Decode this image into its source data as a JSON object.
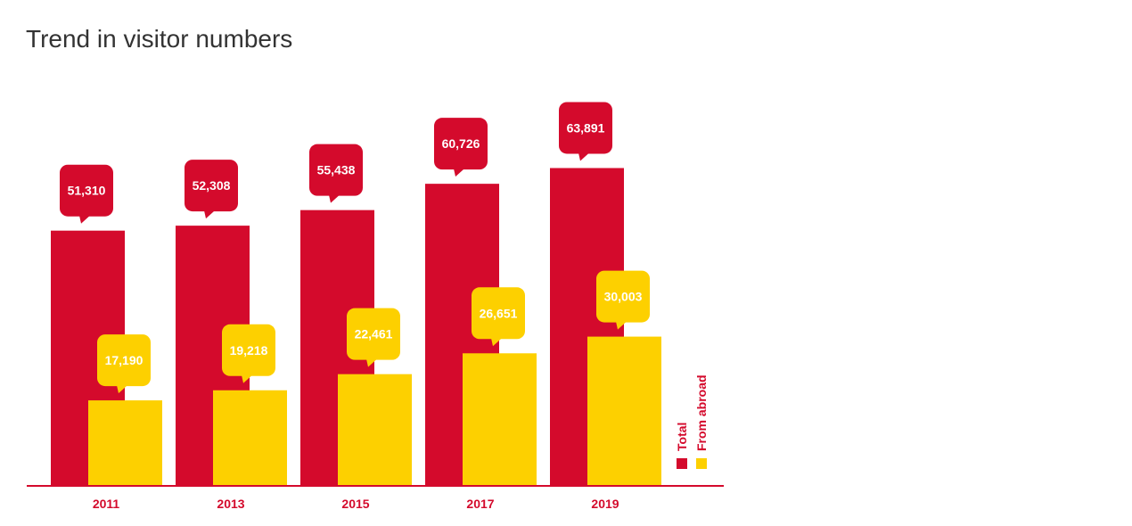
{
  "page": {
    "title": "Trend in visitor numbers"
  },
  "colors": {
    "total": "#d40a2c",
    "abroad": "#fdd000",
    "axis": "#d40a2c",
    "title": "#333333"
  },
  "chart_data": {
    "type": "bar",
    "title": "Trend in visitor numbers",
    "categories": [
      "2011",
      "2013",
      "2015",
      "2017",
      "2019"
    ],
    "series": [
      {
        "name": "Total",
        "values": [
          51310,
          52308,
          55438,
          60726,
          63891
        ],
        "labels": [
          "51,310",
          "52,308",
          "55,438",
          "60,726",
          "63,891"
        ]
      },
      {
        "name": "From abroad",
        "values": [
          17190,
          19218,
          22461,
          26651,
          30003
        ],
        "labels": [
          "17,190",
          "19,218",
          "22,461",
          "26,651",
          "30,003"
        ]
      }
    ],
    "ylim": [
      0,
      64000
    ],
    "grid": false,
    "legend": "right, vertical"
  }
}
